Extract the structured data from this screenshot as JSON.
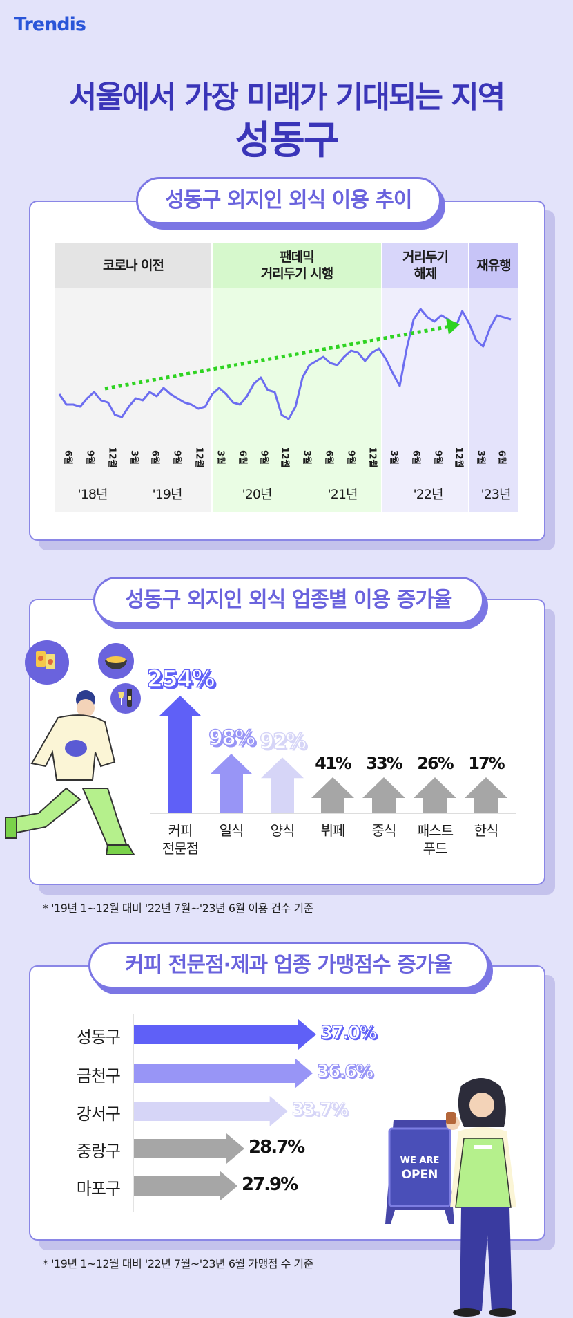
{
  "brand": {
    "logo": "Trendis"
  },
  "header": {
    "title_line1": "서울에서 가장 미래가 기대되는 지역",
    "title_line2": "성동구"
  },
  "section1": {
    "title": "성동구 외지인 외식 이용 추이",
    "chart_data": {
      "type": "line",
      "title": "성동구 외지인 외식 이용 추이",
      "phases": [
        {
          "label": "코로나 이전",
          "color": "#e4e4e4"
        },
        {
          "label": "팬데믹\n거리두기 시행",
          "color": "#d6f8cc"
        },
        {
          "label": "거리두기\n해제",
          "color": "#d8d6fa"
        },
        {
          "label": "재유행",
          "color": "#c7c4f7"
        }
      ],
      "month_ticks": [
        "6월",
        "9월",
        "12월",
        "3월",
        "6월",
        "9월",
        "12월",
        "3월",
        "6월",
        "9월",
        "12월",
        "3월",
        "6월",
        "9월",
        "12월",
        "3월",
        "6월",
        "9월",
        "12월",
        "3월",
        "6월"
      ],
      "year_labels": [
        "'18년",
        "'19년",
        "'20년",
        "'21년",
        "'22년",
        "'23년"
      ],
      "series": [
        {
          "values": [
            50,
            45,
            45,
            44,
            48,
            51,
            47,
            46,
            40,
            39,
            44,
            48,
            47,
            51,
            49,
            53,
            50,
            48,
            46,
            45,
            43,
            44,
            50,
            53,
            50,
            46,
            45,
            49,
            55,
            58,
            52,
            51,
            40,
            38,
            44,
            58,
            64,
            66,
            68,
            65,
            64,
            68,
            71,
            70,
            66,
            70,
            72,
            67,
            60,
            54,
            72,
            86,
            91,
            87,
            85,
            88,
            86,
            82,
            90,
            84,
            76,
            73,
            82,
            88,
            87,
            86
          ]
        }
      ],
      "trend": "up"
    }
  },
  "section2": {
    "title": "성동구 외지인 외식 업종별 이용 증가율",
    "chart_data": {
      "type": "bar",
      "categories": [
        "커피\n전문점",
        "일식",
        "양식",
        "뷔페",
        "중식",
        "패스트\n푸드",
        "한식"
      ],
      "values": [
        254,
        98,
        92,
        41,
        33,
        26,
        17
      ],
      "unit": "%"
    },
    "value_labels": [
      "254%",
      "98%",
      "92%",
      "41%",
      "33%",
      "26%",
      "17%"
    ],
    "note": "* '19년 1~12월 대비 '22년 7월~'23년 6월 이용 건수 기준"
  },
  "section3": {
    "title": "커피 전문점·제과 업종 가맹점수 증가율",
    "chart_data": {
      "type": "bar",
      "orientation": "horizontal",
      "categories": [
        "성동구",
        "금천구",
        "강서구",
        "중랑구",
        "마포구"
      ],
      "values": [
        37.0,
        36.6,
        33.7,
        28.7,
        27.9
      ],
      "unit": "%"
    },
    "value_labels": [
      "37.0%",
      "36.6%",
      "33.7%",
      "28.7%",
      "27.9%"
    ],
    "note": "* '19년 1~12월 대비 '22년 7월~'23년 6월 가맹점 수 기준",
    "sign_text": "WE ARE OPEN"
  },
  "colors": {
    "accent": "#3a35b8",
    "pill": "#6a63dd",
    "bar1": "#5f60f7",
    "bar2": "#9895f6",
    "bar3": "#d6d5f7",
    "gray": "#a6a6a6",
    "line": "#6c6df0",
    "trend": "#2ed321"
  }
}
